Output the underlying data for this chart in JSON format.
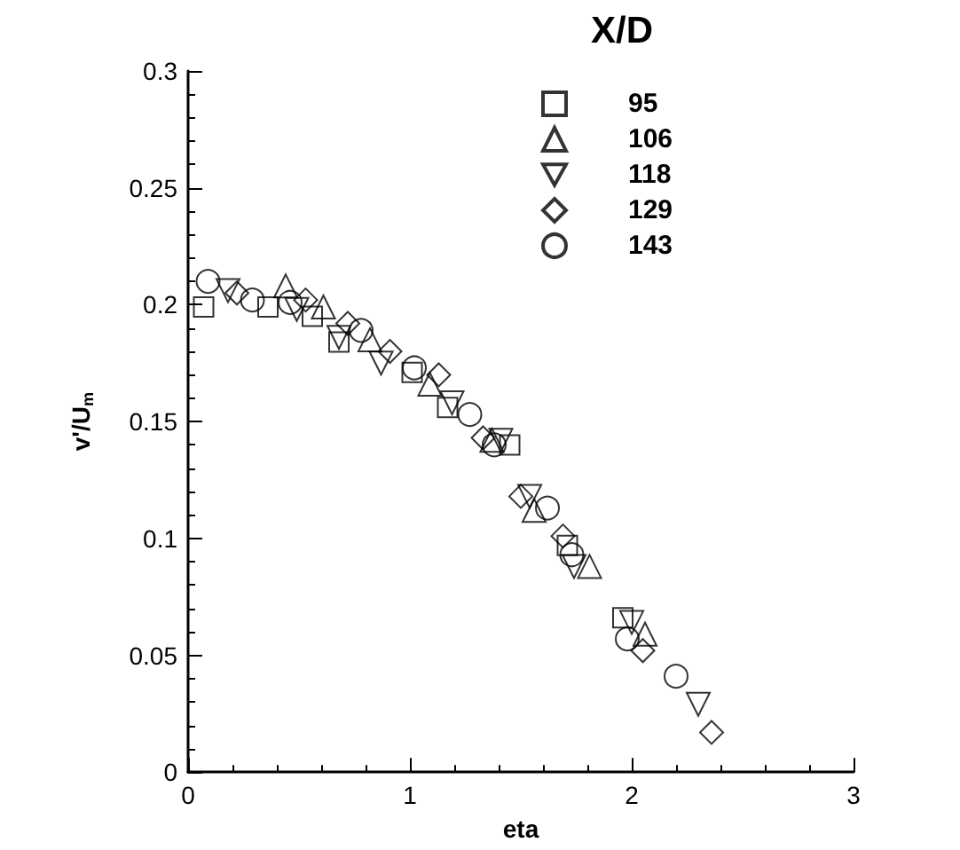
{
  "chart_data": {
    "type": "scatter",
    "legend_title": "X/D",
    "xlabel": "eta",
    "ylabel": "v'/U$_{m}$",
    "xlim": [
      0,
      3
    ],
    "xticks": [
      0,
      1,
      2,
      3
    ],
    "ylim": [
      0,
      0.3
    ],
    "yticks": [
      0,
      0.05,
      0.1,
      0.15,
      0.2,
      0.25,
      0.3
    ],
    "grid": false,
    "legend": "top right",
    "series": [
      {
        "name": "95",
        "color": "#000000",
        "marker": "square",
        "x": [
          0.07,
          0.36,
          0.56,
          0.68,
          1.01,
          1.17,
          1.45,
          1.71,
          1.96
        ],
        "values": [
          0.199,
          0.199,
          0.195,
          0.184,
          0.171,
          0.156,
          0.14,
          0.097,
          0.066
        ]
      },
      {
        "name": "106",
        "color": "#000000",
        "marker": "triangle",
        "x": [
          0.44,
          0.61,
          0.82,
          1.09,
          1.37,
          1.56,
          1.81,
          2.06
        ],
        "values": [
          0.208,
          0.199,
          0.185,
          0.166,
          0.142,
          0.112,
          0.088,
          0.059
        ]
      },
      {
        "name": "118",
        "color": "#000000",
        "marker": "triangle_down",
        "x": [
          0.18,
          0.49,
          0.68,
          0.87,
          1.19,
          1.41,
          1.54,
          1.74,
          2.0,
          2.3
        ],
        "values": [
          0.206,
          0.198,
          0.186,
          0.175,
          0.158,
          0.142,
          0.118,
          0.088,
          0.064,
          0.029
        ]
      },
      {
        "name": "129",
        "color": "#000000",
        "marker": "diamond",
        "x": [
          0.22,
          0.53,
          0.72,
          0.91,
          1.13,
          1.33,
          1.5,
          1.69,
          2.05,
          2.36
        ],
        "values": [
          0.205,
          0.202,
          0.192,
          0.18,
          0.17,
          0.143,
          0.118,
          0.101,
          0.052,
          0.017
        ]
      },
      {
        "name": "143",
        "color": "#000000",
        "marker": "circle",
        "x": [
          0.09,
          0.29,
          0.46,
          0.78,
          1.02,
          1.27,
          1.38,
          1.62,
          1.73,
          1.98,
          2.2
        ],
        "values": [
          0.21,
          0.202,
          0.201,
          0.189,
          0.173,
          0.153,
          0.14,
          0.113,
          0.093,
          0.057,
          0.041
        ]
      }
    ]
  }
}
